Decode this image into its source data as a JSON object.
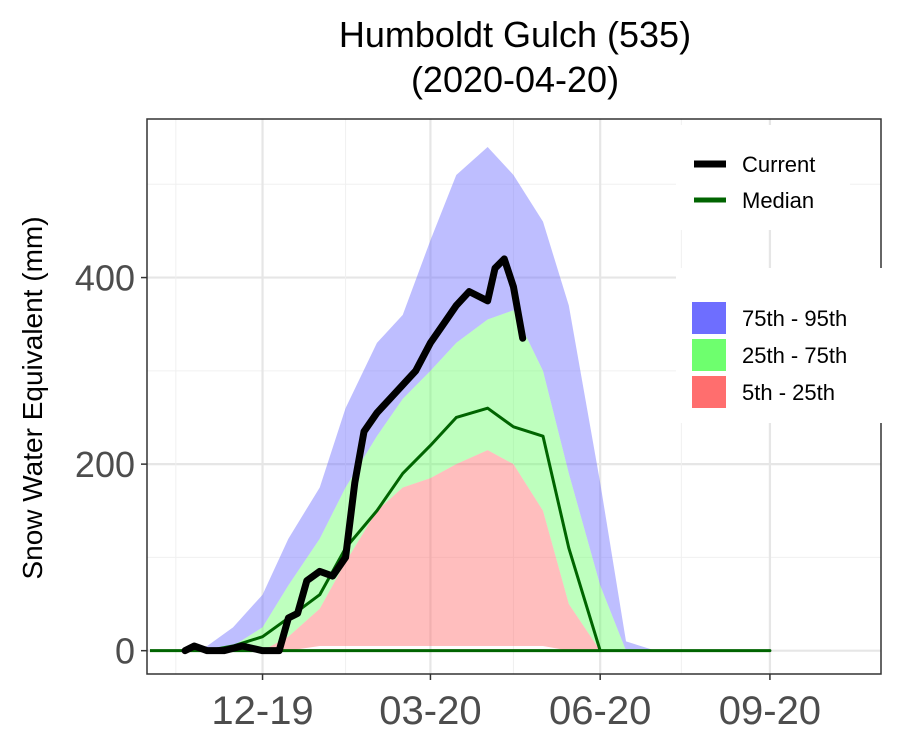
{
  "chart_data": {
    "type": "area",
    "title": "Humboldt Gulch (535)",
    "subtitle": "(2020-04-20)",
    "xlabel": "",
    "ylabel": "Snow Water Equivalent (mm)",
    "x_tick_labels": [
      "12-19",
      "03-20",
      "06-20",
      "09-20"
    ],
    "y_ticks": [
      0,
      200,
      400
    ],
    "ylim": [
      -25,
      570
    ],
    "grid": true,
    "legend_position": "right",
    "legend_lines": [
      {
        "name": "Current",
        "color": "#000000"
      },
      {
        "name": "Median",
        "color": "#006400"
      }
    ],
    "legend_fills": [
      {
        "name": "75th - 95th",
        "color": "#6e6eff"
      },
      {
        "name": "25th - 75th",
        "color": "#6eff6e"
      },
      {
        "name": "5th - 25th",
        "color": "#ff6e6e"
      }
    ],
    "dates": [
      "10-20",
      "11-01",
      "11-15",
      "12-01",
      "12-15",
      "01-01",
      "01-15",
      "02-01",
      "02-15",
      "03-01",
      "03-15",
      "04-01",
      "04-15",
      "05-01",
      "05-15",
      "06-01",
      "06-15",
      "07-01",
      "08-01",
      "09-01",
      "10-01"
    ],
    "bands": {
      "p5": [
        0,
        0,
        0,
        0,
        0,
        5,
        5,
        5,
        5,
        5,
        5,
        5,
        5,
        5,
        0,
        0,
        0,
        0,
        0,
        0,
        0
      ],
      "p25": [
        0,
        0,
        0,
        0,
        15,
        45,
        95,
        150,
        175,
        185,
        200,
        215,
        200,
        150,
        50,
        0,
        0,
        0,
        0,
        0,
        0
      ],
      "p75": [
        0,
        0,
        5,
        25,
        70,
        120,
        175,
        230,
        270,
        300,
        330,
        355,
        365,
        300,
        190,
        70,
        0,
        0,
        0,
        0,
        0
      ],
      "p95": [
        0,
        5,
        25,
        60,
        120,
        175,
        260,
        330,
        360,
        440,
        510,
        540,
        510,
        460,
        370,
        180,
        10,
        0,
        0,
        0,
        0
      ]
    },
    "median": [
      0,
      0,
      5,
      15,
      35,
      60,
      110,
      150,
      190,
      220,
      250,
      260,
      240,
      230,
      110,
      0,
      0,
      0,
      0,
      0,
      0
    ],
    "current": {
      "dates": [
        "10-20",
        "10-25",
        "11-01",
        "11-10",
        "11-20",
        "12-01",
        "12-10",
        "12-15",
        "12-20",
        "12-25",
        "01-01",
        "01-08",
        "01-15",
        "01-20",
        "01-25",
        "02-01",
        "02-08",
        "02-15",
        "02-22",
        "03-01",
        "03-08",
        "03-15",
        "03-22",
        "04-01",
        "04-05",
        "04-10",
        "04-15",
        "04-20"
      ],
      "values": [
        0,
        5,
        0,
        0,
        5,
        0,
        0,
        35,
        40,
        75,
        85,
        80,
        100,
        180,
        235,
        255,
        270,
        285,
        300,
        330,
        350,
        370,
        385,
        375,
        410,
        420,
        390,
        335
      ]
    }
  }
}
